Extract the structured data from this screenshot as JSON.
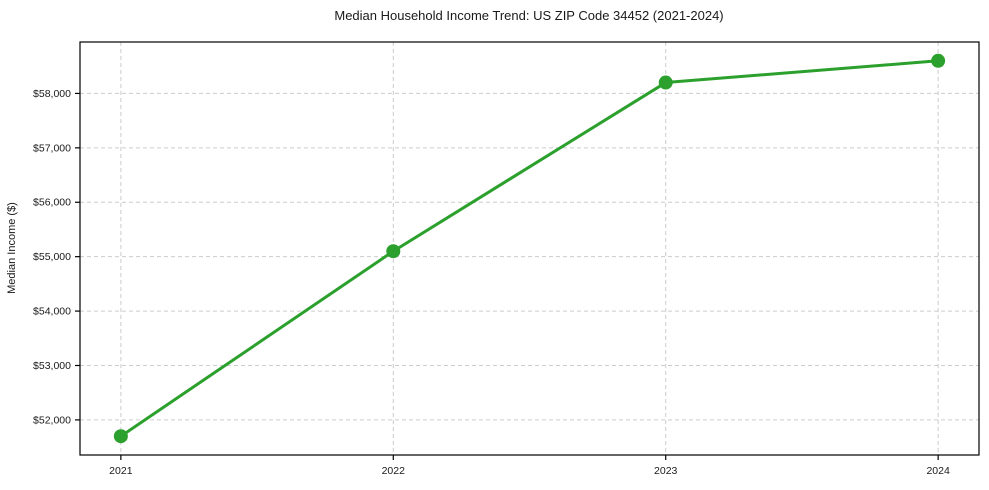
{
  "chart_data": {
    "type": "line",
    "title": "Median Household Income Trend: US ZIP Code 34452 (2021-2024)",
    "xlabel": "",
    "ylabel": "Median Income ($)",
    "x": [
      2021,
      2022,
      2023,
      2024
    ],
    "series": [
      {
        "name": "Median Household Income",
        "values": [
          51700,
          55100,
          58200,
          58600
        ]
      }
    ],
    "xticks": [
      2021,
      2022,
      2023,
      2024
    ],
    "xtick_labels": [
      "2021",
      "2022",
      "2023",
      "2024"
    ],
    "yticks": [
      52000,
      53000,
      54000,
      55000,
      56000,
      57000,
      58000
    ],
    "ytick_labels": [
      "$52,000",
      "$53,000",
      "$54,000",
      "$55,000",
      "$56,000",
      "$57,000",
      "$58,000"
    ],
    "xlim": [
      2020.85,
      2024.15
    ],
    "ylim": [
      51355,
      58945
    ],
    "grid": true,
    "legend_position": "none",
    "line_color": "#2ca02c",
    "marker_color": "#2ca02c",
    "grid_color": "#cccccc",
    "axis_color": "#000000",
    "background_color": "#ffffff",
    "line_width": 3,
    "marker_size": 7
  }
}
